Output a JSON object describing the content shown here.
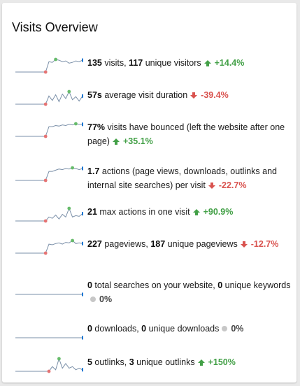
{
  "widget": {
    "title": "Visits Overview"
  },
  "colors": {
    "line": "#7a8fa8",
    "point_min": "#e57373",
    "point_max": "#66bb6a",
    "point_last": "#1976d2",
    "up": "#43a047",
    "down": "#d9534f"
  },
  "metrics": [
    {
      "id": "visits",
      "parts": [
        {
          "t": "135",
          "b": true
        },
        {
          "t": " visits, "
        },
        {
          "t": "117",
          "b": true
        },
        {
          "t": " unique visitors"
        }
      ],
      "trend": "up",
      "change": "+14.4%",
      "spark": [
        0,
        0,
        0,
        0,
        0,
        0,
        0,
        0,
        0,
        0,
        14,
        13,
        17,
        16,
        14,
        15,
        12,
        13,
        15,
        14,
        16
      ]
    },
    {
      "id": "avg-duration",
      "parts": [
        {
          "t": "57s",
          "b": true
        },
        {
          "t": " average visit duration"
        }
      ],
      "trend": "down",
      "change": "-39.4%",
      "spark": [
        0,
        0,
        0,
        0,
        0,
        0,
        0,
        0,
        0,
        0,
        13,
        6,
        15,
        4,
        16,
        9,
        20,
        7,
        12,
        5,
        13
      ]
    },
    {
      "id": "bounce",
      "parts": [
        {
          "t": "77%",
          "b": true
        },
        {
          "t": " visits have bounced (left the website after one page)"
        }
      ],
      "trend": "up",
      "change": "+35.1%",
      "spark": [
        0,
        0,
        0,
        0,
        0,
        0,
        0,
        0,
        0,
        0,
        17,
        17,
        19,
        18,
        20,
        19,
        21,
        20,
        22,
        21,
        21
      ]
    },
    {
      "id": "actions",
      "parts": [
        {
          "t": "1.7",
          "b": true
        },
        {
          "t": " actions (page views, downloads, outlinks and internal site searches) per visit"
        }
      ],
      "trend": "down",
      "change": "-22.7%",
      "spark": [
        0,
        0,
        0,
        0,
        0,
        0,
        0,
        0,
        0,
        0,
        15,
        15,
        17,
        19,
        18,
        20,
        19,
        21,
        20,
        18,
        20
      ]
    },
    {
      "id": "max-actions",
      "parts": [
        {
          "t": "21",
          "b": true
        },
        {
          "t": " max actions in one visit"
        }
      ],
      "trend": "up",
      "change": "+90.9%",
      "spark": [
        0,
        0,
        0,
        0,
        0,
        0,
        0,
        0,
        0,
        0,
        6,
        4,
        9,
        3,
        10,
        6,
        19,
        6,
        8,
        7,
        11
      ]
    },
    {
      "id": "pageviews",
      "parts": [
        {
          "t": "227",
          "b": true
        },
        {
          "t": " pageviews, "
        },
        {
          "t": "187",
          "b": true
        },
        {
          "t": " unique pageviews"
        }
      ],
      "trend": "down",
      "change": "-12.7%",
      "spark": [
        0,
        0,
        0,
        0,
        0,
        0,
        0,
        0,
        0,
        0,
        15,
        14,
        16,
        17,
        15,
        18,
        17,
        21,
        16,
        17,
        16
      ]
    },
    {
      "id": "searches",
      "parts": [
        {
          "t": "0",
          "b": true
        },
        {
          "t": " total searches on your website, "
        },
        {
          "t": "0",
          "b": true
        },
        {
          "t": " unique keywords"
        }
      ],
      "trend": "flat",
      "change": "0%",
      "spark": [
        0,
        0,
        0,
        0,
        0,
        0,
        0,
        0,
        0,
        0,
        0,
        0,
        0,
        0,
        0,
        0,
        0,
        0,
        0,
        0,
        0
      ]
    },
    {
      "id": "downloads",
      "parts": [
        {
          "t": "0",
          "b": true
        },
        {
          "t": " downloads, "
        },
        {
          "t": "0",
          "b": true
        },
        {
          "t": " unique downloads"
        }
      ],
      "trend": "flat",
      "change": "0%",
      "spark": [
        0,
        0,
        0,
        0,
        0,
        0,
        0,
        0,
        0,
        0,
        0,
        0,
        0,
        0,
        0,
        0,
        0,
        0,
        0,
        0,
        0
      ]
    },
    {
      "id": "outlinks",
      "parts": [
        {
          "t": "5",
          "b": true
        },
        {
          "t": " outlinks, "
        },
        {
          "t": "3",
          "b": true
        },
        {
          "t": " unique outlinks"
        }
      ],
      "trend": "up",
      "change": "+150%",
      "spark": [
        0,
        0,
        0,
        0,
        0,
        0,
        0,
        0,
        0,
        0,
        0,
        3,
        1,
        8,
        2,
        5,
        2,
        3,
        1,
        2,
        1
      ]
    }
  ]
}
